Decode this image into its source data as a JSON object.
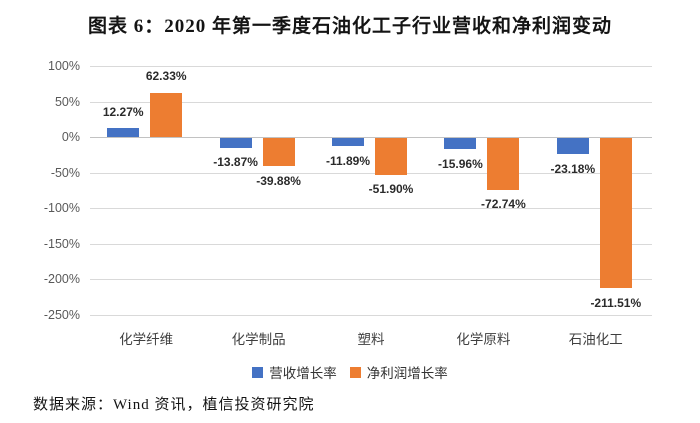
{
  "title": "图表 6：2020 年第一季度石油化工子行业营收和净利润变动",
  "source": "数据来源：Wind 资讯，植信投资研究院",
  "colors": {
    "revenue_bar": "#4472C4",
    "profit_bar": "#ED7D31",
    "gridline": "#D9D9D9",
    "axis_text": "#595959",
    "label_text": "#2B2B2B"
  },
  "chart_data": {
    "type": "bar",
    "categories": [
      "化学纤维",
      "化学制品",
      "塑料",
      "化学原料",
      "石油化工"
    ],
    "series": [
      {
        "name": "营收增长率",
        "semantic": "revenue-growth",
        "color": "#4472C4",
        "values": [
          12.27,
          -13.87,
          -11.89,
          -15.96,
          -23.18
        ]
      },
      {
        "name": "净利润增长率",
        "semantic": "net-profit-growth",
        "color": "#ED7D31",
        "values": [
          62.33,
          -39.88,
          -51.9,
          -72.74,
          -211.51
        ]
      }
    ],
    "data_labels": [
      [
        "12.27%",
        "-13.87%",
        "-11.89%",
        "-15.96%",
        "-23.18%"
      ],
      [
        "62.33%",
        "-39.88%",
        "-51.90%",
        "-72.74%",
        "-211.51%"
      ]
    ],
    "y_ticks": [
      "100%",
      "50%",
      "0%",
      "-50%",
      "-100%",
      "-150%",
      "-200%",
      "-250%"
    ],
    "y_tick_values": [
      100,
      50,
      0,
      -50,
      -100,
      -150,
      -200,
      -250
    ],
    "ylim": [
      -250,
      100
    ],
    "grid": true,
    "legend_position": "bottom",
    "xlabel": "",
    "ylabel": ""
  }
}
